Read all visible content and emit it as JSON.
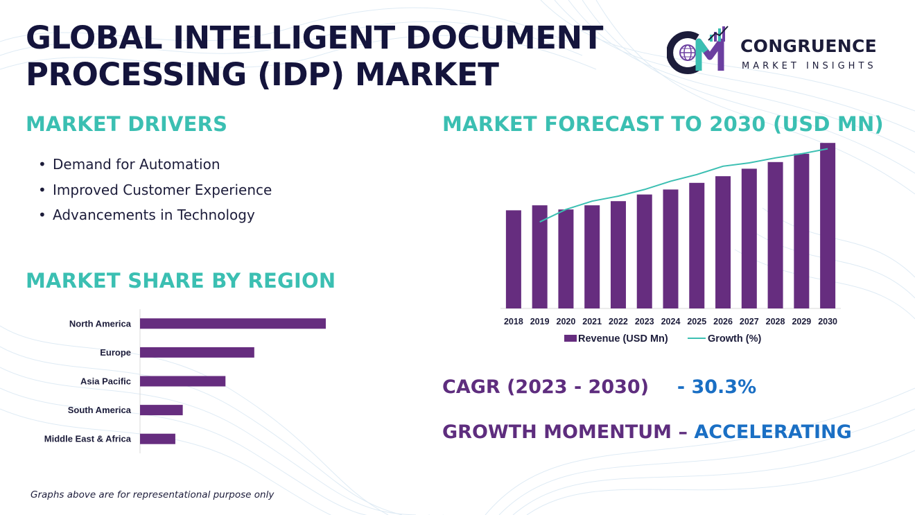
{
  "title_lines": [
    "GLOBAL INTELLIGENT DOCUMENT",
    "PROCESSING (IDP) MARKET"
  ],
  "logo": {
    "brand": "CONGRUENCE",
    "tagline": "MARKET INSIGHTS",
    "colors": {
      "c_letter": "#1c1c3a",
      "m_letter": "#6b3fa0",
      "m_accent": "#3bbfb2"
    },
    "icons": [
      "globe-icon",
      "growth-bars-icon"
    ]
  },
  "drivers": {
    "heading": "MARKET DRIVERS",
    "bullet": "•",
    "items": [
      "Demand for Automation",
      "Improved Customer Experience",
      "Advancements in Technology"
    ]
  },
  "region": {
    "heading": "MARKET SHARE BY REGION"
  },
  "forecast": {
    "heading": "MARKET FORECAST TO 2030 (USD MN)"
  },
  "colors": {
    "heading_teal": "#3bbfb2",
    "bar_purple": "#662d7f",
    "line_teal": "#3bbfb2",
    "title_navy": "#14143c",
    "accent_purple": "#5e2d7e",
    "accent_blue": "#1a6fc4"
  },
  "chart_data": [
    {
      "type": "bar",
      "orientation": "horizontal",
      "categories": [
        "North America",
        "Europe",
        "Asia Pacific",
        "South America",
        "Middle East & Africa"
      ],
      "values": [
        100,
        61.5,
        46,
        23,
        19
      ],
      "xlim": [
        0,
        100
      ],
      "grid": false,
      "title": "",
      "xlabel": "",
      "ylabel": ""
    },
    {
      "type": "bar",
      "categories": [
        "2018",
        "2019",
        "2020",
        "2021",
        "2022",
        "2023",
        "2024",
        "2025",
        "2026",
        "2027",
        "2028",
        "2029",
        "2030"
      ],
      "series": [
        {
          "name": "Revenue (USD Mn)",
          "type": "bar",
          "values": [
            59,
            62,
            59.5,
            62,
            64.5,
            68.5,
            71.5,
            75.5,
            79.5,
            84,
            88,
            93,
            99.5
          ]
        },
        {
          "name": "Growth (%)",
          "type": "line",
          "values": [
            null,
            52,
            59.5,
            64.5,
            67.5,
            71.5,
            76.5,
            80.5,
            85.5,
            87.5,
            90.5,
            93,
            96
          ]
        }
      ],
      "ylim": [
        0,
        100
      ],
      "legend": "bottom",
      "grid": false,
      "title": "",
      "xlabel": "",
      "ylabel": ""
    }
  ],
  "cagr": {
    "label": "CAGR (2023 - 2030)",
    "value": "- 30.3%"
  },
  "momentum": {
    "label": "GROWTH MOMENTUM –",
    "value": "ACCELERATING"
  },
  "footnote": "Graphs above are for representational purpose only"
}
